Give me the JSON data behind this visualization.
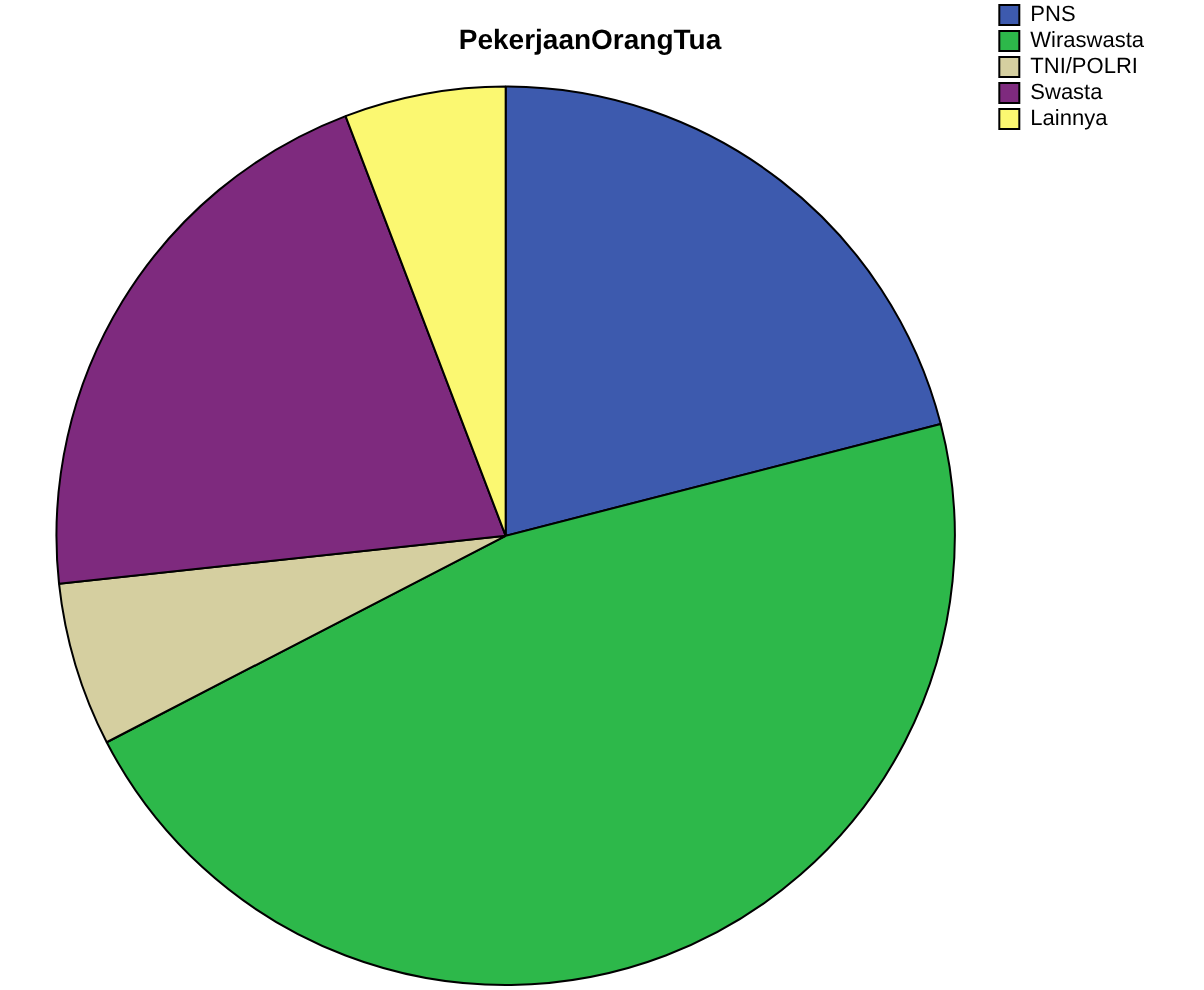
{
  "chart_data": {
    "type": "pie",
    "title": "PekerjaanOrangTua",
    "categories": [
      "PNS",
      "Wiraswasta",
      "TNI/POLRI",
      "Swasta",
      "Lainnya"
    ],
    "values": [
      21,
      46.4,
      5.9,
      20.9,
      5.8
    ],
    "colors": [
      "#3d5aae",
      "#2db84a",
      "#d5cfa0",
      "#7e2a7e",
      "#fbf871"
    ],
    "legend": "top right"
  }
}
